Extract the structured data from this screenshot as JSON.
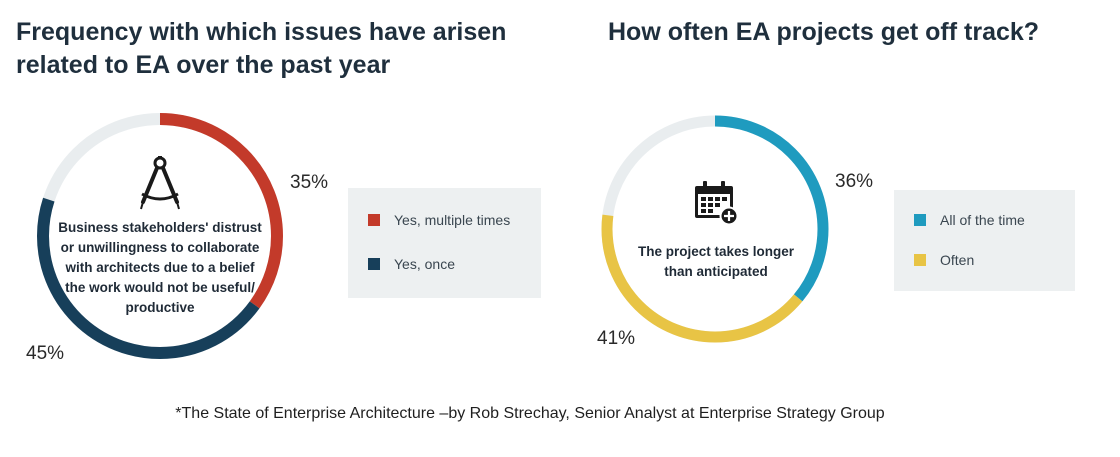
{
  "colors": {
    "red": "#c33a2a",
    "navy": "#173f5a",
    "teal": "#1f9bbf",
    "yellow": "#e8c445",
    "track": "#e9edef",
    "legend_bg": "#edf0f1"
  },
  "chart_data": [
    {
      "type": "pie",
      "title": "Frequency with which issues have arisen related to EA over the past year",
      "center_text": "Business stakeholders' distrust or unwillingness to collaborate with architects due to a belief the work would not be useful/ productive",
      "slices": [
        {
          "name": "Yes, multiple times",
          "value": 35,
          "label": "35%",
          "color": "#c33a2a"
        },
        {
          "name": "Yes, once",
          "value": 45,
          "label": "45%",
          "color": "#173f5a"
        }
      ],
      "legend": [
        {
          "label": "Yes, multiple times",
          "color": "#c33a2a"
        },
        {
          "label": "Yes, once",
          "color": "#173f5a"
        }
      ],
      "legend_position": "right"
    },
    {
      "type": "pie",
      "title": "How often EA projects get off track?",
      "center_text": "The project takes longer than anticipated",
      "slices": [
        {
          "name": "All of the time",
          "value": 36,
          "label": "36%",
          "color": "#1f9bbf"
        },
        {
          "name": "Often",
          "value": 41,
          "label": "41%",
          "color": "#e8c445"
        }
      ],
      "legend": [
        {
          "label": "All of the time",
          "color": "#1f9bbf"
        },
        {
          "label": "Often",
          "color": "#e8c445"
        }
      ],
      "legend_position": "right"
    }
  ],
  "footnote": "*The State of Enterprise Architecture –by Rob Strechay, Senior Analyst at Enterprise Strategy Group",
  "icons": {
    "left": "drafting-compass-icon",
    "right": "calendar-add-icon"
  }
}
